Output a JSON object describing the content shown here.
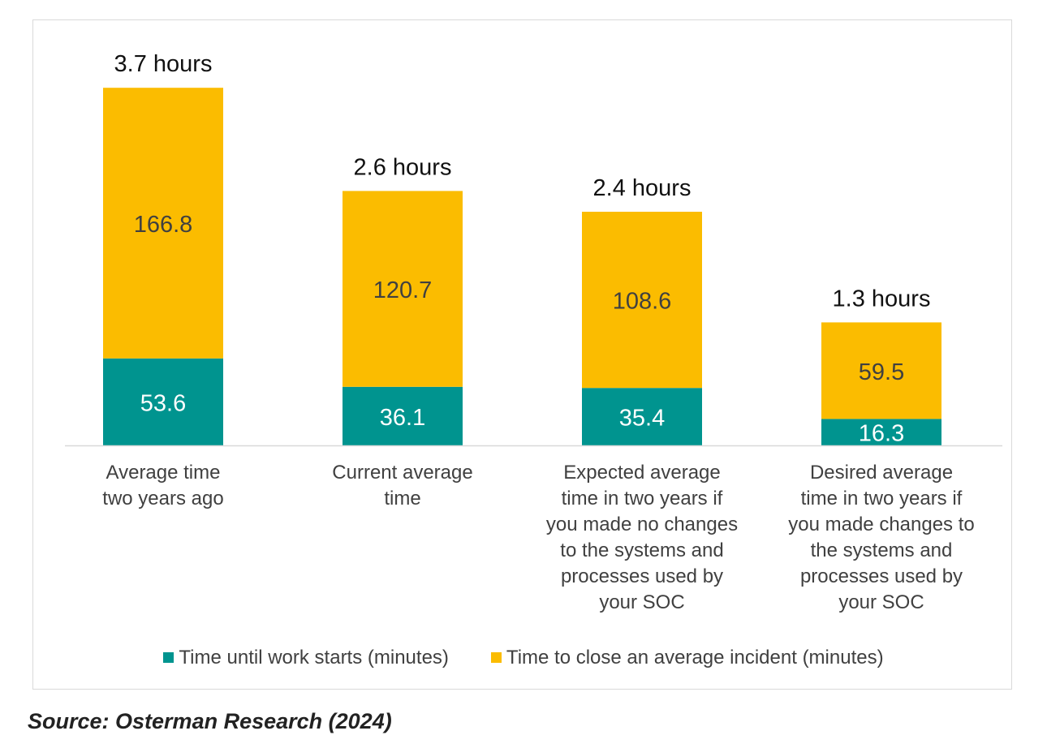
{
  "chart_data": {
    "type": "bar",
    "stacked": true,
    "grid": false,
    "legend_position": "bottom",
    "categories": [
      [
        "Average time",
        "two years ago"
      ],
      [
        "Current average",
        "time"
      ],
      [
        "Expected average",
        "time in two years if",
        "you made no changes",
        "to the systems and",
        "processes used by",
        "your SOC"
      ],
      [
        "Desired average",
        "time in two years if",
        "you made changes to",
        "the systems and",
        "processes used by",
        "your SOC"
      ]
    ],
    "series": [
      {
        "name": "Time until work starts (minutes)",
        "color": "#00948f",
        "values": [
          53.6,
          36.1,
          35.4,
          16.3
        ]
      },
      {
        "name": "Time to close an average incident (minutes)",
        "color": "#fbbc00",
        "values": [
          166.8,
          120.7,
          108.6,
          59.5
        ]
      }
    ],
    "total_labels": [
      "3.7 hours",
      "2.6 hours",
      "2.4 hours",
      "1.3 hours"
    ],
    "ylim": [
      0,
      220
    ]
  },
  "source": "Source: Osterman Research (2024)"
}
